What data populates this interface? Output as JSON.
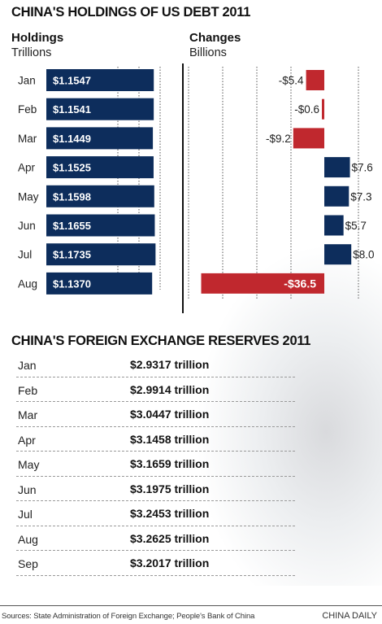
{
  "title": "CHINA'S HOLDINGS OF US DEBT 2011",
  "holdings_header": {
    "title": "Holdings",
    "unit": "Trillions"
  },
  "changes_header": {
    "title": "Changes",
    "unit": "Billions"
  },
  "colors": {
    "navy": "#0d2d5c",
    "red": "#c0282e",
    "grid": "#555555"
  },
  "chart_data": [
    {
      "type": "bar",
      "orientation": "horizontal",
      "title": "Holdings",
      "unit": "Trillions",
      "categories": [
        "Jan",
        "Feb",
        "Mar",
        "Apr",
        "May",
        "Jun",
        "Jul",
        "Aug"
      ],
      "values": [
        1.1547,
        1.1541,
        1.1449,
        1.1525,
        1.1598,
        1.1655,
        1.1735,
        1.137
      ],
      "labels": [
        "$1.1547",
        "$1.1541",
        "$1.1449",
        "$1.1525",
        "$1.1598",
        "$1.1655",
        "$1.1735",
        "$1.1370"
      ],
      "grid": true
    },
    {
      "type": "bar",
      "orientation": "horizontal",
      "title": "Changes",
      "unit": "Billions",
      "categories": [
        "Jan",
        "Feb",
        "Mar",
        "Apr",
        "May",
        "Jun",
        "Jul",
        "Aug"
      ],
      "values": [
        -5.4,
        -0.6,
        -9.2,
        7.6,
        7.3,
        5.7,
        8.0,
        -36.5
      ],
      "labels": [
        "-$5.4",
        "-$0.6",
        "-$9.2",
        "$7.6",
        "$7.3",
        "$5.7",
        "$8.0",
        "-$36.5"
      ],
      "grid": true
    }
  ],
  "reserves": {
    "title": "CHINA'S FOREIGN EXCHANGE RESERVES 2011",
    "rows": [
      {
        "month": "Jan",
        "value": "$2.9317 trillion"
      },
      {
        "month": "Feb",
        "value": "$2.9914 trillion"
      },
      {
        "month": "Mar",
        "value": "$3.0447 trillion"
      },
      {
        "month": "Apr",
        "value": "$3.1458 trillion"
      },
      {
        "month": "May",
        "value": "$3.1659 trillion"
      },
      {
        "month": "Jun",
        "value": "$3.1975 trillion"
      },
      {
        "month": "Jul",
        "value": "$3.2453 trillion"
      },
      {
        "month": "Aug",
        "value": "$3.2625 trillion"
      },
      {
        "month": "Sep",
        "value": "$3.2017 trillion"
      }
    ]
  },
  "footer": {
    "source": "Sources: State Administration of Foreign Exchange; People's Bank of China",
    "credit": "CHINA DAILY"
  }
}
